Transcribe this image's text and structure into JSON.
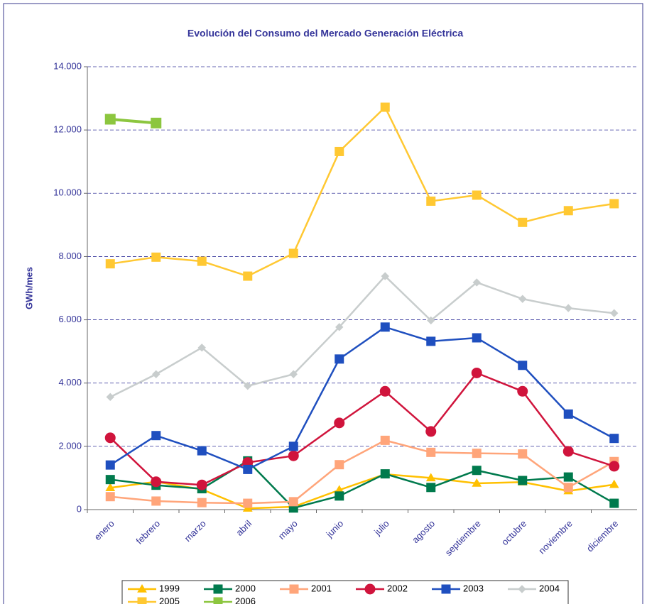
{
  "chart_data": {
    "type": "line",
    "title": "Evolución del Consumo del Mercado Generación Eléctrica",
    "y_label": "GWh/mes",
    "categories": [
      "enero",
      "febrero",
      "marzo",
      "abril",
      "mayo",
      "junio",
      "julio",
      "agosto",
      "septiembre",
      "octubre",
      "noviembre",
      "diciembre"
    ],
    "series": [
      {
        "name": "1999",
        "color": "#FFC000",
        "marker": "triangle",
        "values": [
          690,
          880,
          640,
          40,
          90,
          620,
          1120,
          1000,
          830,
          870,
          590,
          790
        ]
      },
      {
        "name": "2000",
        "color": "#007A4D",
        "marker": "square",
        "values": [
          950,
          770,
          660,
          1540,
          50,
          430,
          1130,
          700,
          1240,
          920,
          1030,
          200
        ]
      },
      {
        "name": "2001",
        "color": "#FFA57A",
        "marker": "square",
        "values": [
          410,
          270,
          220,
          200,
          250,
          1420,
          2190,
          1810,
          1780,
          1760,
          700,
          1520
        ]
      },
      {
        "name": "2002",
        "color": "#D0143C",
        "marker": "circle",
        "values": [
          2270,
          880,
          780,
          1490,
          1700,
          2740,
          3740,
          2470,
          4320,
          3740,
          1840,
          1370
        ]
      },
      {
        "name": "2003",
        "color": "#1F4FBF",
        "marker": "square",
        "values": [
          1410,
          2340,
          1860,
          1270,
          2000,
          4760,
          5770,
          5320,
          5430,
          4560,
          3020,
          2250
        ]
      },
      {
        "name": "2004",
        "color": "#C8CDCD",
        "marker": "diamond",
        "values": [
          3560,
          4280,
          5120,
          3910,
          4280,
          5770,
          7380,
          5980,
          7180,
          6660,
          6370,
          6210
        ]
      },
      {
        "name": "2005",
        "color": "#FFC832",
        "marker": "square",
        "values": [
          7770,
          7980,
          7850,
          7380,
          8100,
          11320,
          12720,
          9750,
          9940,
          9080,
          9450,
          9670
        ]
      },
      {
        "name": "2006",
        "color": "#8CC63F",
        "marker": "square",
        "values": [
          12340,
          12220,
          null,
          null,
          null,
          null,
          null,
          null,
          null,
          null,
          null,
          null
        ]
      }
    ],
    "ylim": [
      0,
      14000
    ],
    "yticks": [
      0,
      {
        "value": 2000,
        "label": "2.000"
      },
      {
        "value": 4000,
        "label": "4.000"
      },
      {
        "value": 6000,
        "label": "6.000"
      },
      {
        "value": 8000,
        "label": "8.000"
      },
      {
        "value": 10000,
        "label": "10.000"
      },
      {
        "value": 12000,
        "label": "12.000"
      },
      {
        "value": 14000,
        "label": "14.000"
      }
    ],
    "grid": true,
    "legend": "bottom"
  }
}
